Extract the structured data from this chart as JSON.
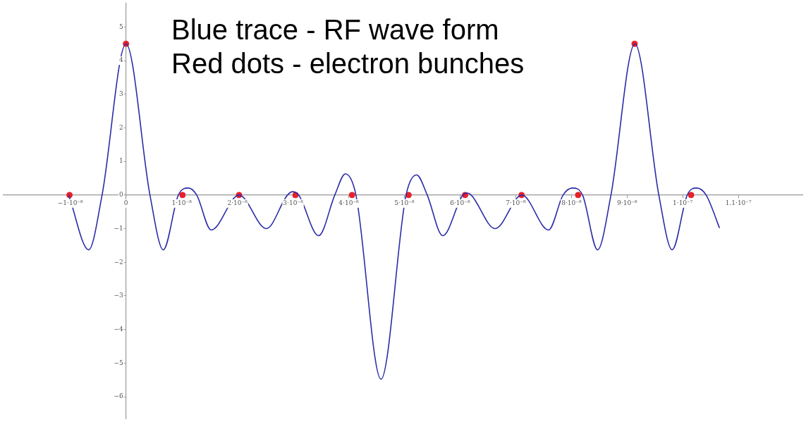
{
  "chart_data": {
    "type": "line",
    "annotations": [
      "Blue trace - RF wave form",
      "Red dots - electron bunches"
    ],
    "xlim": [
      -2.2e-08,
      1.215e-07
    ],
    "ylim": [
      -6.65,
      5.7
    ],
    "xticks": [
      {
        "value": -1e-08,
        "label": "−1·10⁻⁸"
      },
      {
        "value": 0,
        "label": "0"
      },
      {
        "value": 1e-08,
        "label": "1·10⁻⁸"
      },
      {
        "value": 2e-08,
        "label": "2·10⁻⁸"
      },
      {
        "value": 3e-08,
        "label": "3·10⁻⁸"
      },
      {
        "value": 4e-08,
        "label": "4·10⁻⁸"
      },
      {
        "value": 5e-08,
        "label": "5·10⁻⁸"
      },
      {
        "value": 6e-08,
        "label": "6·10⁻⁸"
      },
      {
        "value": 7e-08,
        "label": "7·10⁻⁸"
      },
      {
        "value": 8e-08,
        "label": "8·10⁻⁸"
      },
      {
        "value": 9e-08,
        "label": "9·10⁻⁸"
      },
      {
        "value": 1e-07,
        "label": "1·10⁻⁷"
      },
      {
        "value": 1.1e-07,
        "label": "1.1·10⁻⁷"
      }
    ],
    "yticks": [
      {
        "value": -6,
        "label": "−6"
      },
      {
        "value": -5,
        "label": "−5"
      },
      {
        "value": -4,
        "label": "−4"
      },
      {
        "value": -3,
        "label": "−3"
      },
      {
        "value": -2,
        "label": "−2"
      },
      {
        "value": -1,
        "label": "−1"
      },
      0,
      1,
      2,
      3,
      4,
      5
    ],
    "grid": false,
    "legend": false,
    "series": [
      {
        "color": "#2c2ca8",
        "marker": "none",
        "line_style": "solid",
        "x": [
          -1.03e-08,
          -6.7e-09,
          -4.3e-09,
          0,
          4.3e-09,
          6.7e-09,
          9.4e-09,
          1.12e-08,
          1.27e-08,
          1.53e-08,
          2.03e-08,
          2.52e-08,
          2.9e-08,
          2.99e-08,
          3.1e-08,
          3.46e-08,
          3.75e-08,
          3.94e-08,
          4.13e-08,
          4.58e-08,
          5.03e-08,
          5.22e-08,
          5.41e-08,
          5.69e-08,
          6.05e-08,
          6.13e-08,
          6.2e-08,
          6.63e-08,
          7.11e-08,
          7.59e-08,
          7.85e-08,
          8.02e-08,
          8.2e-08,
          8.47e-08,
          8.71e-08,
          9.14e-08,
          9.57e-08,
          9.81e-08,
          1.008e-07,
          1.025e-07,
          1.042e-07,
          1.066e-07
        ],
        "values": [
          0,
          -1.63,
          0,
          4.5,
          0,
          -1.63,
          0,
          0.21,
          0,
          -1.04,
          0,
          -1.0,
          0,
          0.1,
          0,
          -1.21,
          0,
          0.63,
          0,
          -5.48,
          0,
          0.6,
          0,
          -1.21,
          0,
          0.06,
          0,
          -1.0,
          0,
          -1.04,
          0,
          0.21,
          0,
          -1.63,
          0,
          4.5,
          0,
          -1.63,
          0,
          0.21,
          0,
          -0.98
        ]
      },
      {
        "type": "scatter",
        "color": "#e8202a",
        "marker": "circle",
        "x": [
          -1.015e-08,
          0,
          1.015e-08,
          2.03e-08,
          3.045e-08,
          4.06e-08,
          5.075e-08,
          6.09e-08,
          7.105e-08,
          8.12e-08,
          9.135e-08,
          1.015e-07
        ],
        "values": [
          0,
          4.5,
          0,
          0,
          0,
          0,
          0,
          0,
          0,
          0,
          4.5,
          0
        ]
      }
    ]
  }
}
